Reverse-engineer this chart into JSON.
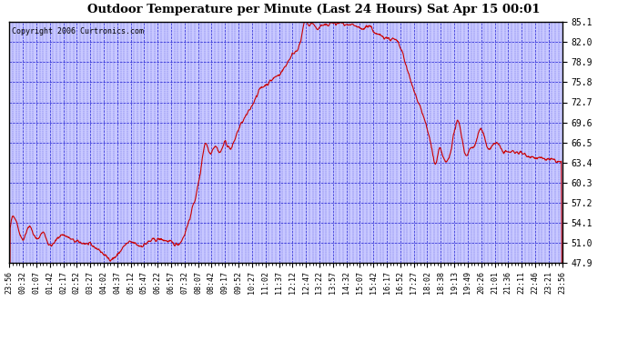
{
  "title": "Outdoor Temperature per Minute (Last 24 Hours) Sat Apr 15 00:01",
  "copyright": "Copyright 2006 Curtronics.com",
  "background_color": "#c8c8ff",
  "line_color": "#cc0000",
  "grid_color": "#0000cc",
  "text_color": "#000000",
  "y_ticks": [
    47.9,
    51.0,
    54.1,
    57.2,
    60.3,
    63.4,
    66.5,
    69.6,
    72.7,
    75.8,
    78.9,
    82.0,
    85.1
  ],
  "y_min": 47.9,
  "y_max": 85.1,
  "x_labels": [
    "23:56",
    "00:32",
    "01:07",
    "01:42",
    "02:17",
    "02:52",
    "03:27",
    "04:02",
    "04:37",
    "05:12",
    "05:47",
    "06:22",
    "06:57",
    "07:32",
    "08:07",
    "08:42",
    "09:17",
    "09:52",
    "10:27",
    "11:02",
    "11:37",
    "12:12",
    "12:47",
    "13:22",
    "13:57",
    "14:32",
    "15:07",
    "15:42",
    "16:17",
    "16:52",
    "17:27",
    "18:02",
    "18:38",
    "19:13",
    "19:49",
    "20:26",
    "21:01",
    "21:36",
    "22:11",
    "22:46",
    "23:21",
    "23:56"
  ],
  "keypoints_x": [
    0,
    20,
    35,
    50,
    70,
    90,
    100,
    130,
    160,
    185,
    215,
    240,
    260,
    280,
    300,
    320,
    340,
    360,
    390,
    420,
    450,
    460,
    480,
    500,
    510,
    520,
    535,
    550,
    560,
    575,
    590,
    610,
    630,
    650,
    670,
    690,
    710,
    730,
    750,
    760,
    770,
    780,
    790,
    800,
    810,
    820,
    840,
    850,
    860,
    880,
    900,
    920,
    940,
    950,
    970,
    990,
    1010,
    1030,
    1050,
    1070,
    1090,
    1100,
    1110,
    1120,
    1130,
    1150,
    1165,
    1175,
    1185,
    1200,
    1215,
    1225,
    1235,
    1250,
    1265,
    1280,
    1300,
    1320,
    1350,
    1380,
    1410,
    1430,
    1439
  ],
  "keypoints_y": [
    52.0,
    54.0,
    51.5,
    53.5,
    51.5,
    52.5,
    51.0,
    52.0,
    51.5,
    51.0,
    50.5,
    49.5,
    48.5,
    49.0,
    50.5,
    51.0,
    50.5,
    51.0,
    51.5,
    51.0,
    51.5,
    53.0,
    57.0,
    63.0,
    66.5,
    65.0,
    66.0,
    65.0,
    66.5,
    65.5,
    67.5,
    70.0,
    72.0,
    74.5,
    75.5,
    76.5,
    77.5,
    79.5,
    81.0,
    82.5,
    85.5,
    84.5,
    85.0,
    84.0,
    84.5,
    84.5,
    85.0,
    84.8,
    85.0,
    84.5,
    84.5,
    84.0,
    84.5,
    83.5,
    83.0,
    82.5,
    82.0,
    79.0,
    75.0,
    72.0,
    68.0,
    65.5,
    63.0,
    65.5,
    64.0,
    65.5,
    69.5,
    68.5,
    65.0,
    65.5,
    66.5,
    68.5,
    67.5,
    65.5,
    66.5,
    65.5,
    65.0,
    65.0,
    64.5,
    64.0,
    63.8,
    63.5,
    63.4
  ],
  "noise_seed": 42,
  "noise_scale": 0.3,
  "smooth_window": 5,
  "figsize": [
    6.9,
    3.75
  ],
  "dpi": 100
}
